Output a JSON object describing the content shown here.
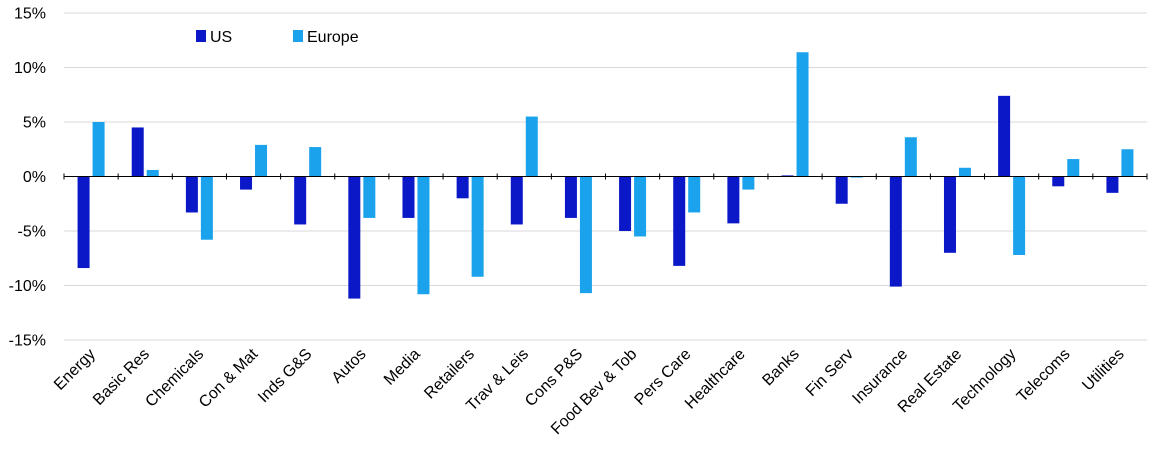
{
  "chart_data": {
    "type": "bar",
    "title": "",
    "xlabel": "",
    "ylabel": "",
    "ylim": [
      -15,
      15
    ],
    "yticks": [
      15,
      10,
      5,
      0,
      -5,
      -10,
      -15
    ],
    "ytick_labels": [
      "15%",
      "10%",
      "5%",
      "0%",
      "-5%",
      "-10%",
      "-15%"
    ],
    "grid": true,
    "legend_position": "top-left",
    "categories": [
      "Energy",
      "Basic Res",
      "Chemicals",
      "Con & Mat",
      "Inds G&S",
      "Autos",
      "Media",
      "Retailers",
      "Trav & Leis",
      "Cons P&S",
      "Food Bev & Tob",
      "Pers Care",
      "Healthcare",
      "Banks",
      "Fin Serv",
      "Insurance",
      "Real Estate",
      "Technology",
      "Telecoms",
      "Utilities"
    ],
    "series": [
      {
        "name": "US",
        "color": "#0a18c8",
        "values": [
          -8.4,
          4.5,
          -3.3,
          -1.2,
          -4.4,
          -11.2,
          -3.8,
          -2.0,
          -4.4,
          -3.8,
          -5.0,
          -8.2,
          -4.3,
          0.1,
          -2.5,
          -10.1,
          -7.0,
          7.4,
          -0.9,
          -1.5
        ]
      },
      {
        "name": "Europe",
        "color": "#1aa3ec",
        "values": [
          5.0,
          0.6,
          -5.8,
          2.9,
          2.7,
          -3.8,
          -10.8,
          -9.2,
          5.5,
          -10.7,
          -5.5,
          -3.3,
          -1.2,
          11.4,
          -0.1,
          3.6,
          0.8,
          -7.2,
          1.6,
          2.5
        ]
      }
    ]
  }
}
